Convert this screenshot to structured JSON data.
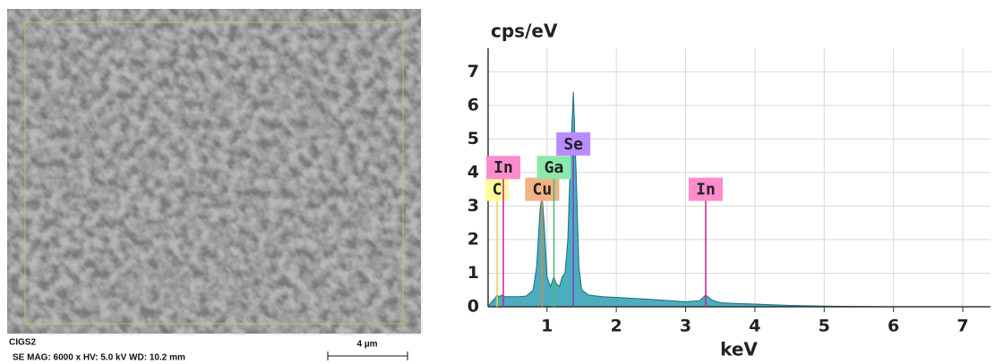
{
  "sem_image": {
    "sample": "CIGS2",
    "info": "SE  MAG: 6000 x  HV: 5.0 kV  WD: 10.2 mm",
    "scale_bar": "4 µm"
  },
  "chart_data": {
    "type": "area",
    "ylabel": "cps/eV",
    "xlabel": "keV",
    "x": [
      0.15,
      0.2,
      0.25,
      0.28,
      0.31,
      0.35,
      0.4,
      0.5,
      0.6,
      0.7,
      0.8,
      0.85,
      0.9,
      0.93,
      0.96,
      1.0,
      1.05,
      1.1,
      1.13,
      1.18,
      1.22,
      1.26,
      1.3,
      1.34,
      1.38,
      1.42,
      1.46,
      1.5,
      1.6,
      1.8,
      2.0,
      2.5,
      3.0,
      3.2,
      3.29,
      3.38,
      3.5,
      3.7,
      4.0,
      4.5,
      5.0,
      5.5,
      6.0,
      7.0,
      7.4
    ],
    "values": [
      0,
      0.15,
      0.25,
      0.35,
      0.3,
      0.35,
      0.3,
      0.3,
      0.3,
      0.32,
      0.5,
      1.2,
      2.9,
      3.3,
      2.4,
      0.9,
      0.6,
      0.9,
      0.7,
      0.6,
      0.9,
      1.0,
      2.0,
      4.5,
      6.4,
      4.0,
      1.2,
      0.5,
      0.35,
      0.3,
      0.28,
      0.22,
      0.15,
      0.18,
      0.35,
      0.2,
      0.12,
      0.1,
      0.08,
      0.04,
      0.02,
      0.01,
      0,
      0,
      0
    ],
    "color": "#2b9fb3",
    "xlim": [
      0.15,
      7.4
    ],
    "ylim": [
      0,
      7.7
    ],
    "xticks": [
      1,
      2,
      3,
      4,
      5,
      6,
      7
    ],
    "yticks": [
      0,
      1,
      2,
      3,
      4,
      5,
      6,
      7
    ],
    "grid": true,
    "annotations": [
      {
        "label": "C",
        "x": 0.28,
        "y": 3.5,
        "color": "#ffff99",
        "line_color": "#d8d850"
      },
      {
        "label": "In",
        "x": 0.37,
        "y": 4.15,
        "color": "#ff8ccc",
        "line_color": "#d0208a"
      },
      {
        "label": "Cu",
        "x": 0.93,
        "y": 3.5,
        "color": "#f4b183",
        "line_color": "#d98a40"
      },
      {
        "label": "Ga",
        "x": 1.1,
        "y": 4.15,
        "color": "#8ce8aa",
        "line_color": "#40c070"
      },
      {
        "label": "Se",
        "x": 1.38,
        "y": 4.85,
        "color": "#bb8cff",
        "line_color": "#8040d0"
      },
      {
        "label": "In",
        "x": 3.29,
        "y": 3.5,
        "color": "#ff8ccc",
        "line_color": "#d0208a"
      }
    ]
  }
}
